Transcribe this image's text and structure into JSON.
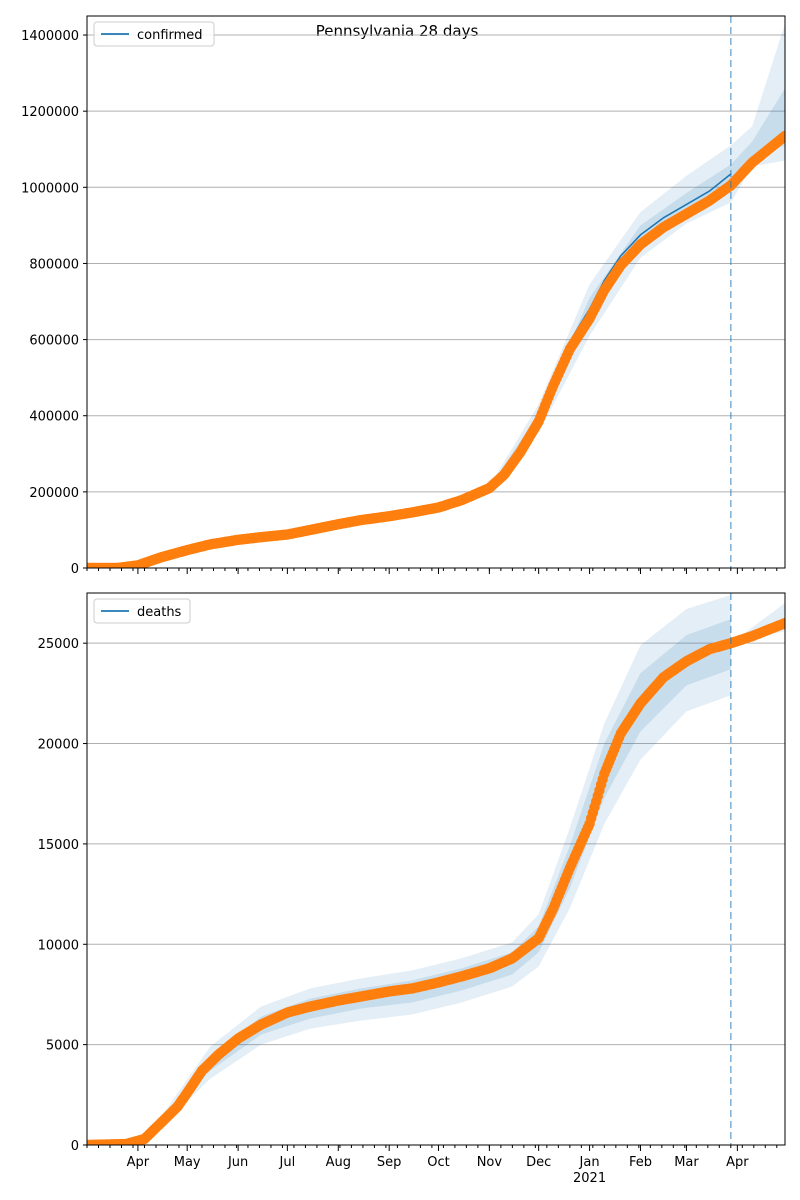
{
  "title": "Pennsylvania 28 days",
  "colors": {
    "model": "#1f77b4",
    "observed": "#ff7f0e",
    "band": "#1f77b4",
    "grid": "#b0b0b0",
    "forecast_line": "#1f77b4"
  },
  "x_axis": {
    "start": "2020-03-01",
    "end": "2021-04-30",
    "forecast_start": "2021-03-28",
    "month_labels": [
      {
        "date": "2020-04-01",
        "label": "Apr"
      },
      {
        "date": "2020-05-01",
        "label": "May"
      },
      {
        "date": "2020-06-01",
        "label": "Jun"
      },
      {
        "date": "2020-07-01",
        "label": "Jul"
      },
      {
        "date": "2020-08-01",
        "label": "Aug"
      },
      {
        "date": "2020-09-01",
        "label": "Sep"
      },
      {
        "date": "2020-10-01",
        "label": "Oct"
      },
      {
        "date": "2020-11-01",
        "label": "Nov"
      },
      {
        "date": "2020-12-01",
        "label": "Dec"
      },
      {
        "date": "2021-01-01",
        "label": "Jan"
      },
      {
        "date": "2021-02-01",
        "label": "Feb"
      },
      {
        "date": "2021-03-01",
        "label": "Mar"
      },
      {
        "date": "2021-04-01",
        "label": "Apr"
      }
    ],
    "year_label": {
      "date": "2021-01-01",
      "label": "2021"
    }
  },
  "chart_data": [
    {
      "type": "line",
      "legend": "confirmed",
      "legend_position": "top-left",
      "grid": "y",
      "ylim": [
        0,
        1450000
      ],
      "yticks": [
        0,
        200000,
        400000,
        600000,
        800000,
        1000000,
        1200000,
        1400000
      ],
      "observed": [
        [
          "2020-03-01",
          0
        ],
        [
          "2020-03-20",
          300
        ],
        [
          "2020-04-01",
          7000
        ],
        [
          "2020-04-15",
          28000
        ],
        [
          "2020-05-01",
          47000
        ],
        [
          "2020-05-15",
          62000
        ],
        [
          "2020-06-01",
          74000
        ],
        [
          "2020-06-15",
          81000
        ],
        [
          "2020-07-01",
          88000
        ],
        [
          "2020-07-15",
          100000
        ],
        [
          "2020-08-01",
          115000
        ],
        [
          "2020-08-15",
          126000
        ],
        [
          "2020-09-01",
          136000
        ],
        [
          "2020-09-15",
          146000
        ],
        [
          "2020-10-01",
          159000
        ],
        [
          "2020-10-15",
          178000
        ],
        [
          "2020-11-01",
          210000
        ],
        [
          "2020-11-10",
          245000
        ],
        [
          "2020-11-20",
          305000
        ],
        [
          "2020-12-01",
          385000
        ],
        [
          "2020-12-10",
          480000
        ],
        [
          "2020-12-20",
          575000
        ],
        [
          "2021-01-01",
          655000
        ],
        [
          "2021-01-10",
          730000
        ],
        [
          "2021-01-20",
          795000
        ],
        [
          "2021-02-01",
          850000
        ],
        [
          "2021-02-15",
          895000
        ],
        [
          "2021-03-01",
          930000
        ],
        [
          "2021-03-15",
          965000
        ],
        [
          "2021-03-28",
          1005000
        ],
        [
          "2021-04-10",
          1065000
        ],
        [
          "2021-04-30",
          1135000
        ]
      ],
      "model": [
        [
          "2020-03-01",
          0
        ],
        [
          "2020-03-20",
          300
        ],
        [
          "2020-04-01",
          7000
        ],
        [
          "2020-04-15",
          28000
        ],
        [
          "2020-05-01",
          47000
        ],
        [
          "2020-05-15",
          62000
        ],
        [
          "2020-06-01",
          74000
        ],
        [
          "2020-06-15",
          81000
        ],
        [
          "2020-07-01",
          88000
        ],
        [
          "2020-07-15",
          100000
        ],
        [
          "2020-08-01",
          115000
        ],
        [
          "2020-08-15",
          126000
        ],
        [
          "2020-09-01",
          136000
        ],
        [
          "2020-09-15",
          146000
        ],
        [
          "2020-10-01",
          159000
        ],
        [
          "2020-10-15",
          178000
        ],
        [
          "2020-11-01",
          210000
        ],
        [
          "2020-11-10",
          245000
        ],
        [
          "2020-11-20",
          305000
        ],
        [
          "2020-12-01",
          390000
        ],
        [
          "2020-12-10",
          495000
        ],
        [
          "2020-12-20",
          595000
        ],
        [
          "2021-01-01",
          680000
        ],
        [
          "2021-01-10",
          755000
        ],
        [
          "2021-01-20",
          820000
        ],
        [
          "2021-02-01",
          875000
        ],
        [
          "2021-02-15",
          920000
        ],
        [
          "2021-03-01",
          955000
        ],
        [
          "2021-03-15",
          990000
        ],
        [
          "2021-03-28",
          1035000
        ]
      ],
      "band_outer": {
        "lower": [
          [
            "2020-11-01",
            205000
          ],
          [
            "2020-12-01",
            355000
          ],
          [
            "2021-01-01",
            610000
          ],
          [
            "2021-02-01",
            815000
          ],
          [
            "2021-03-01",
            905000
          ],
          [
            "2021-03-28",
            960000
          ],
          [
            "2021-04-10",
            1055000
          ],
          [
            "2021-04-30",
            1070000
          ]
        ],
        "upper": [
          [
            "2020-11-01",
            215000
          ],
          [
            "2020-12-01",
            430000
          ],
          [
            "2021-01-01",
            745000
          ],
          [
            "2021-02-01",
            935000
          ],
          [
            "2021-03-01",
            1030000
          ],
          [
            "2021-03-28",
            1110000
          ],
          [
            "2021-04-10",
            1160000
          ],
          [
            "2021-04-30",
            1430000
          ]
        ]
      },
      "band_inner": {
        "lower": [
          [
            "2020-11-01",
            208000
          ],
          [
            "2020-12-01",
            375000
          ],
          [
            "2021-01-01",
            650000
          ],
          [
            "2021-02-01",
            850000
          ],
          [
            "2021-03-01",
            930000
          ],
          [
            "2021-03-28",
            1000000
          ],
          [
            "2021-04-10",
            1075000
          ],
          [
            "2021-04-30",
            1110000
          ]
        ],
        "upper": [
          [
            "2020-11-01",
            212000
          ],
          [
            "2020-12-01",
            405000
          ],
          [
            "2021-01-01",
            710000
          ],
          [
            "2021-02-01",
            900000
          ],
          [
            "2021-03-01",
            985000
          ],
          [
            "2021-03-28",
            1060000
          ],
          [
            "2021-04-10",
            1120000
          ],
          [
            "2021-04-30",
            1260000
          ]
        ]
      }
    },
    {
      "type": "line",
      "legend": "deaths",
      "legend_position": "top-left",
      "grid": "y",
      "ylim": [
        0,
        27500
      ],
      "yticks": [
        0,
        5000,
        10000,
        15000,
        20000,
        25000
      ],
      "observed": [
        [
          "2020-03-01",
          0
        ],
        [
          "2020-03-25",
          50
        ],
        [
          "2020-04-05",
          300
        ],
        [
          "2020-04-15",
          1100
        ],
        [
          "2020-04-25",
          1900
        ],
        [
          "2020-05-01",
          2600
        ],
        [
          "2020-05-10",
          3700
        ],
        [
          "2020-05-20",
          4500
        ],
        [
          "2020-06-01",
          5300
        ],
        [
          "2020-06-15",
          6000
        ],
        [
          "2020-07-01",
          6600
        ],
        [
          "2020-07-15",
          6900
        ],
        [
          "2020-08-01",
          7200
        ],
        [
          "2020-08-15",
          7400
        ],
        [
          "2020-09-01",
          7650
        ],
        [
          "2020-09-15",
          7800
        ],
        [
          "2020-10-01",
          8100
        ],
        [
          "2020-10-15",
          8400
        ],
        [
          "2020-11-01",
          8800
        ],
        [
          "2020-11-15",
          9300
        ],
        [
          "2020-12-01",
          10300
        ],
        [
          "2020-12-10",
          11800
        ],
        [
          "2020-12-20",
          13800
        ],
        [
          "2021-01-01",
          16000
        ],
        [
          "2021-01-10",
          18500
        ],
        [
          "2021-01-20",
          20500
        ],
        [
          "2021-02-01",
          22000
        ],
        [
          "2021-02-15",
          23300
        ],
        [
          "2021-03-01",
          24100
        ],
        [
          "2021-03-15",
          24700
        ],
        [
          "2021-03-28",
          25000
        ],
        [
          "2021-04-10",
          25350
        ],
        [
          "2021-04-30",
          26000
        ]
      ],
      "model": [
        [
          "2020-03-01",
          0
        ],
        [
          "2020-03-25",
          50
        ],
        [
          "2020-04-05",
          300
        ],
        [
          "2020-04-15",
          1100
        ],
        [
          "2020-04-25",
          1900
        ],
        [
          "2020-05-01",
          2600
        ],
        [
          "2020-05-10",
          3700
        ],
        [
          "2020-05-20",
          4500
        ],
        [
          "2020-06-01",
          5300
        ],
        [
          "2020-06-15",
          6000
        ],
        [
          "2020-07-01",
          6600
        ],
        [
          "2020-07-15",
          6900
        ],
        [
          "2020-08-01",
          7200
        ],
        [
          "2020-08-15",
          7400
        ],
        [
          "2020-09-01",
          7650
        ],
        [
          "2020-09-15",
          7800
        ],
        [
          "2020-10-01",
          8100
        ],
        [
          "2020-10-15",
          8400
        ],
        [
          "2020-11-01",
          8800
        ],
        [
          "2020-11-15",
          9300
        ],
        [
          "2020-12-01",
          10300
        ],
        [
          "2020-12-10",
          11900
        ],
        [
          "2020-12-20",
          13900
        ],
        [
          "2021-01-01",
          16300
        ],
        [
          "2021-01-10",
          18700
        ],
        [
          "2021-01-20",
          20700
        ],
        [
          "2021-02-01",
          22200
        ],
        [
          "2021-02-15",
          23400
        ],
        [
          "2021-03-01",
          24200
        ],
        [
          "2021-03-15",
          24700
        ],
        [
          "2021-03-28",
          25000
        ]
      ],
      "band_outer": {
        "lower": [
          [
            "2020-04-15",
            900
          ],
          [
            "2020-05-15",
            3300
          ],
          [
            "2020-06-15",
            5000
          ],
          [
            "2020-07-15",
            5800
          ],
          [
            "2020-08-15",
            6200
          ],
          [
            "2020-09-15",
            6500
          ],
          [
            "2020-10-15",
            7100
          ],
          [
            "2020-11-15",
            7900
          ],
          [
            "2020-12-01",
            8900
          ],
          [
            "2020-12-20",
            11800
          ],
          [
            "2021-01-10",
            16000
          ],
          [
            "2021-02-01",
            19200
          ],
          [
            "2021-03-01",
            21600
          ],
          [
            "2021-03-28",
            22400
          ]
        ],
        "upper": [
          [
            "2020-04-15",
            1400
          ],
          [
            "2020-05-15",
            4900
          ],
          [
            "2020-06-15",
            6900
          ],
          [
            "2020-07-15",
            7800
          ],
          [
            "2020-08-15",
            8300
          ],
          [
            "2020-09-15",
            8700
          ],
          [
            "2020-10-15",
            9300
          ],
          [
            "2020-11-15",
            10100
          ],
          [
            "2020-12-01",
            11500
          ],
          [
            "2020-12-20",
            15800
          ],
          [
            "2021-01-10",
            21000
          ],
          [
            "2021-02-01",
            24900
          ],
          [
            "2021-03-01",
            26700
          ],
          [
            "2021-03-28",
            27400
          ]
        ]
      },
      "band_inner": {
        "lower": [
          [
            "2020-04-15",
            1000
          ],
          [
            "2020-05-15",
            3700
          ],
          [
            "2020-06-15",
            5500
          ],
          [
            "2020-07-15",
            6300
          ],
          [
            "2020-08-15",
            6800
          ],
          [
            "2020-09-15",
            7100
          ],
          [
            "2020-10-15",
            7700
          ],
          [
            "2020-11-15",
            8500
          ],
          [
            "2020-12-01",
            9600
          ],
          [
            "2020-12-20",
            12800
          ],
          [
            "2021-01-10",
            17300
          ],
          [
            "2021-02-01",
            20600
          ],
          [
            "2021-03-01",
            22900
          ],
          [
            "2021-03-28",
            23700
          ]
        ],
        "upper": [
          [
            "2020-04-15",
            1250
          ],
          [
            "2020-05-15",
            4400
          ],
          [
            "2020-06-15",
            6400
          ],
          [
            "2020-07-15",
            7300
          ],
          [
            "2020-08-15",
            7800
          ],
          [
            "2020-09-15",
            8200
          ],
          [
            "2020-10-15",
            8800
          ],
          [
            "2020-11-15",
            9600
          ],
          [
            "2020-12-01",
            10900
          ],
          [
            "2020-12-20",
            14900
          ],
          [
            "2021-01-10",
            20000
          ],
          [
            "2021-02-01",
            23500
          ],
          [
            "2021-03-01",
            25400
          ],
          [
            "2021-03-28",
            26200
          ]
        ]
      },
      "band_forecast": {
        "lower": [
          [
            "2021-03-28",
            25000
          ],
          [
            "2021-04-30",
            25600
          ]
        ],
        "upper": [
          [
            "2021-03-28",
            25000
          ],
          [
            "2021-04-30",
            27000
          ]
        ]
      }
    }
  ]
}
